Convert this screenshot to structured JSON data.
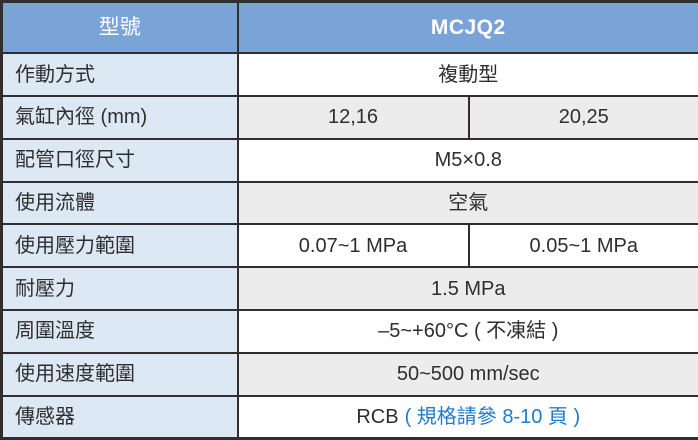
{
  "table": {
    "header": {
      "label": "型號",
      "value": "MCJQ2"
    },
    "rows": [
      {
        "label": "作動方式",
        "value": "複動型"
      },
      {
        "label": "氣缸內徑 (mm)",
        "values": [
          "12,16",
          "20,25"
        ]
      },
      {
        "label": "配管口徑尺寸",
        "value": "M5×0.8"
      },
      {
        "label": "使用流體",
        "value": "空氣"
      },
      {
        "label": "使用壓力範圍",
        "values": [
          "0.07~1 MPa",
          "0.05~1 MPa"
        ]
      },
      {
        "label": "耐壓力",
        "value": "1.5 MPa"
      },
      {
        "label": "周圍溫度",
        "value": "–5~+60°C ( 不凍結 )"
      },
      {
        "label": "使用速度範圍",
        "value": "50~500 mm/sec"
      },
      {
        "label": "傳感器",
        "value": "RCB",
        "note": "( 規格請參 8-10 頁 )"
      }
    ],
    "colors": {
      "header_background": "#7aa4d8",
      "label_background": "#dde8f5",
      "alt_row_background": "#ececed",
      "border": "#332e2d",
      "text": "#2e2e2e",
      "header_text": "#ffffff",
      "note_text": "#1f7ad0"
    }
  }
}
